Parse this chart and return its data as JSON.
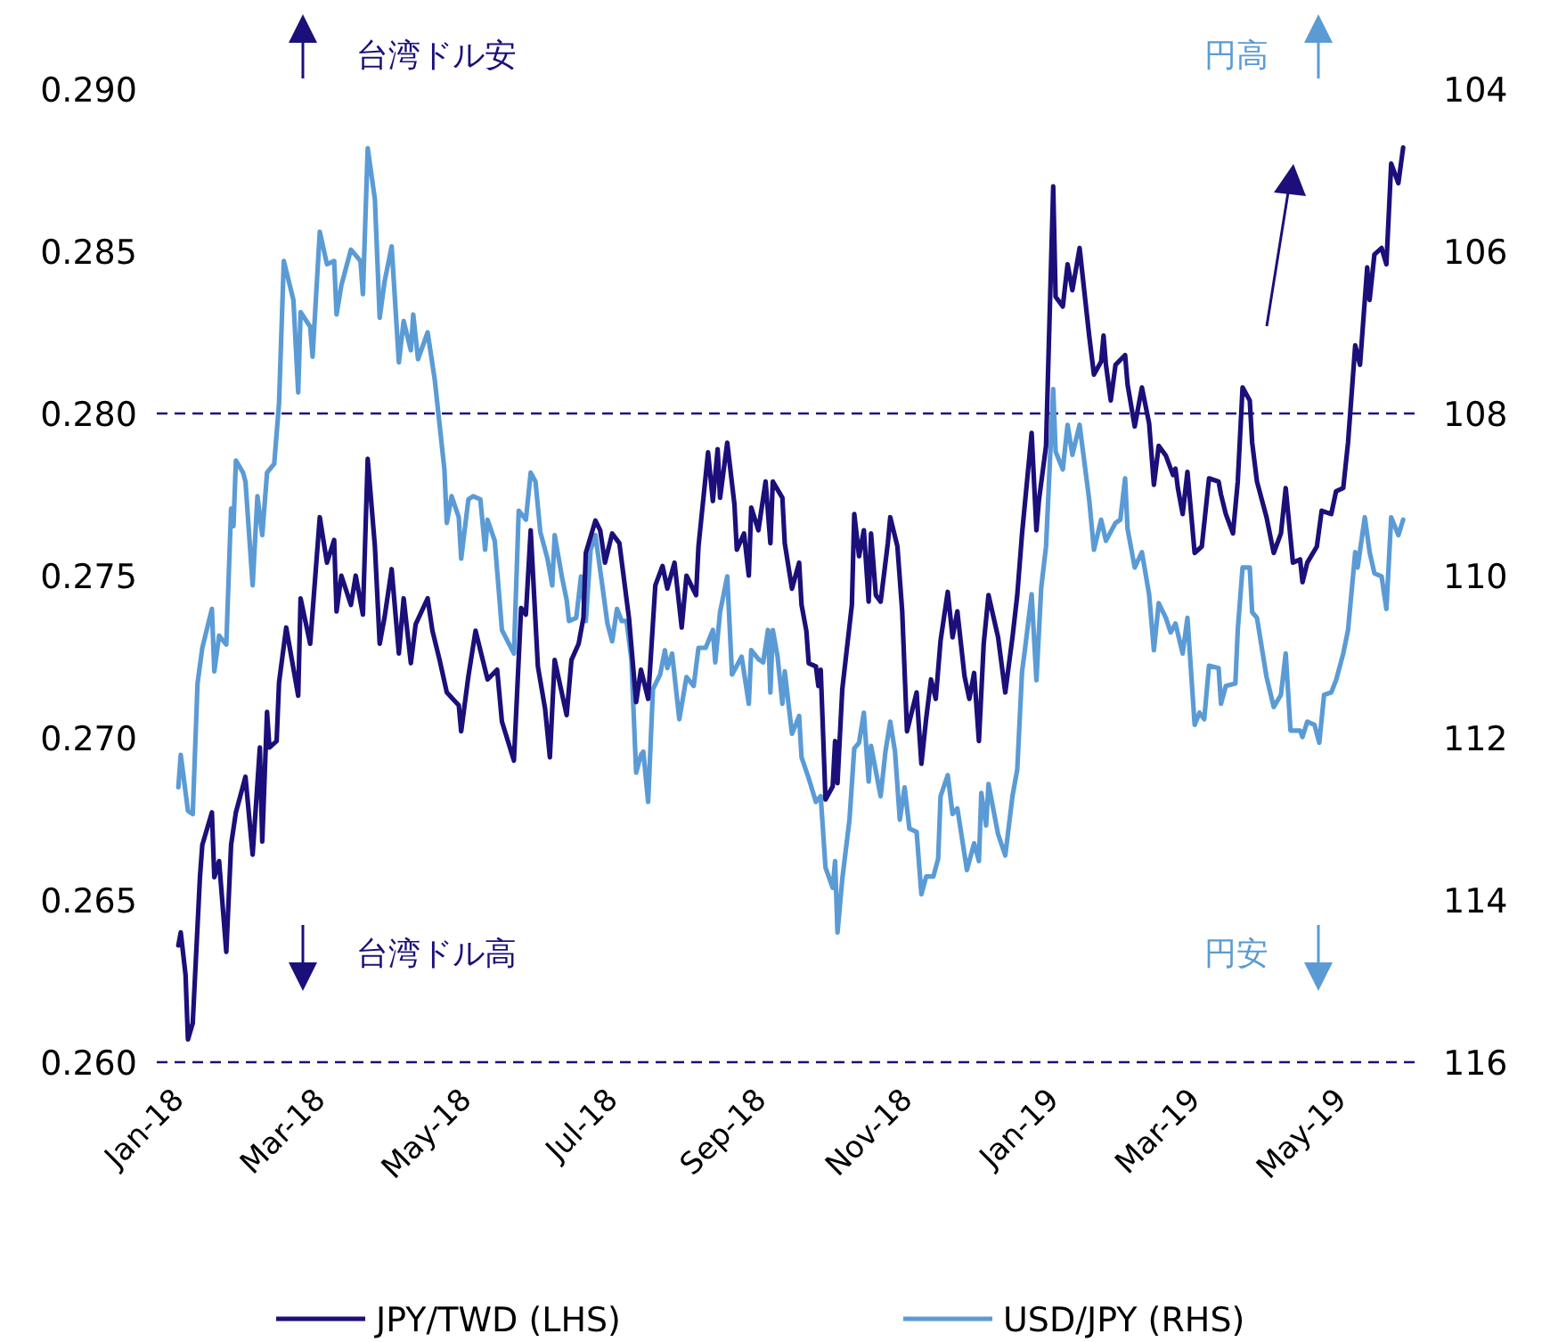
{
  "chart_data": {
    "type": "line",
    "xlim": [
      "2017-12-23",
      "2019-06-03"
    ],
    "xticks": [
      {
        "value": "2018-01-01",
        "label": "Jan-18"
      },
      {
        "value": "2018-03-01",
        "label": "Mar-18"
      },
      {
        "value": "2018-05-01",
        "label": "May-18"
      },
      {
        "value": "2018-07-01",
        "label": "Jul-18"
      },
      {
        "value": "2018-09-01",
        "label": "Sep-18"
      },
      {
        "value": "2018-11-01",
        "label": "Nov-18"
      },
      {
        "value": "2019-01-01",
        "label": "Jan-19"
      },
      {
        "value": "2019-03-01",
        "label": "Mar-19"
      },
      {
        "value": "2019-05-01",
        "label": "May-19"
      }
    ],
    "ylim": [
      0.26,
      0.29
    ],
    "yticks": [
      {
        "value": 0.26,
        "label": "0.260"
      },
      {
        "value": 0.265,
        "label": "0.265"
      },
      {
        "value": 0.27,
        "label": "0.270"
      },
      {
        "value": 0.275,
        "label": "0.275"
      },
      {
        "value": 0.28,
        "label": "0.280"
      },
      {
        "value": 0.285,
        "label": "0.285"
      },
      {
        "value": 0.29,
        "label": "0.290"
      }
    ],
    "y2lim": [
      116,
      104
    ],
    "y2ticks": [
      104,
      106,
      108,
      110,
      112,
      114,
      116
    ],
    "ref_lines": [
      {
        "axis": "y",
        "value": 0.28,
        "color": "#1b0f7a",
        "line_style": "dashed"
      },
      {
        "axis": "y",
        "value": 0.26,
        "color": "#1b0f7a",
        "line_style": "dashed"
      }
    ],
    "annotations": [
      "台湾ドル安",
      "円高",
      "台湾ドル高",
      "円安"
    ],
    "legend": "bottom",
    "series": [
      {
        "name": "JPY/TWD (LHS)",
        "color": "#1b0f7a",
        "x": [
          "2018-01-01",
          "2018-01-02",
          "2018-01-04",
          "2018-01-05",
          "2018-01-07",
          "2018-01-10",
          "2018-01-11",
          "2018-01-15",
          "2018-01-16",
          "2018-01-18",
          "2018-01-21",
          "2018-01-23",
          "2018-01-25",
          "2018-01-29",
          "2018-02-01",
          "2018-02-04",
          "2018-02-05",
          "2018-02-07",
          "2018-02-08",
          "2018-02-11",
          "2018-02-12",
          "2018-02-15",
          "2018-02-20",
          "2018-02-21",
          "2018-02-25",
          "2018-03-01",
          "2018-03-04",
          "2018-03-07",
          "2018-03-08",
          "2018-03-10",
          "2018-03-14",
          "2018-03-16",
          "2018-03-19",
          "2018-03-21",
          "2018-03-24",
          "2018-03-26",
          "2018-03-28",
          "2018-03-31",
          "2018-04-03",
          "2018-04-05",
          "2018-04-08",
          "2018-04-10",
          "2018-04-15",
          "2018-04-17",
          "2018-04-20",
          "2018-04-23",
          "2018-04-28",
          "2018-04-29",
          "2018-05-02",
          "2018-05-05",
          "2018-05-10",
          "2018-05-14",
          "2018-05-16",
          "2018-05-21",
          "2018-05-24",
          "2018-05-26",
          "2018-05-28",
          "2018-05-31",
          "2018-06-03",
          "2018-06-05",
          "2018-06-07",
          "2018-06-12",
          "2018-06-14",
          "2018-06-17",
          "2018-06-19",
          "2018-06-20",
          "2018-06-24",
          "2018-06-26",
          "2018-06-28",
          "2018-07-01",
          "2018-07-04",
          "2018-07-08",
          "2018-07-11",
          "2018-07-13",
          "2018-07-16",
          "2018-07-19",
          "2018-07-22",
          "2018-07-24",
          "2018-07-27",
          "2018-07-30",
          "2018-08-01",
          "2018-08-05",
          "2018-08-06",
          "2018-08-10",
          "2018-08-12",
          "2018-08-14",
          "2018-08-15",
          "2018-08-18",
          "2018-08-21",
          "2018-08-22",
          "2018-08-25",
          "2018-08-27",
          "2018-08-28",
          "2018-08-31",
          "2018-09-03",
          "2018-09-05",
          "2018-09-06",
          "2018-09-10",
          "2018-09-11",
          "2018-09-14",
          "2018-09-17",
          "2018-09-18",
          "2018-09-20",
          "2018-09-21",
          "2018-09-24",
          "2018-09-25",
          "2018-09-26",
          "2018-09-28",
          "2018-10-01",
          "2018-10-02",
          "2018-10-03",
          "2018-10-05",
          "2018-10-09",
          "2018-10-10",
          "2018-10-12",
          "2018-10-14",
          "2018-10-16",
          "2018-10-17",
          "2018-10-19",
          "2018-10-21",
          "2018-10-24",
          "2018-10-25",
          "2018-10-28",
          "2018-10-30",
          "2018-11-01",
          "2018-11-05",
          "2018-11-07",
          "2018-11-09",
          "2018-11-11",
          "2018-11-13",
          "2018-11-15",
          "2018-11-18",
          "2018-11-20",
          "2018-11-22",
          "2018-11-25",
          "2018-11-27",
          "2018-11-29",
          "2018-12-01",
          "2018-12-03",
          "2018-12-05",
          "2018-12-09",
          "2018-12-12",
          "2018-12-15",
          "2018-12-17",
          "2018-12-19",
          "2018-12-23",
          "2018-12-25",
          "2018-12-26",
          "2018-12-29",
          "2019-01-01",
          "2019-01-02",
          "2019-01-05",
          "2019-01-07",
          "2019-01-09",
          "2019-01-12",
          "2019-01-16",
          "2019-01-18",
          "2019-01-21",
          "2019-01-22",
          "2019-01-23",
          "2019-01-25",
          "2019-01-27",
          "2019-01-31",
          "2019-02-01",
          "2019-02-04",
          "2019-02-07",
          "2019-02-10",
          "2019-02-12",
          "2019-02-14",
          "2019-02-17",
          "2019-02-20",
          "2019-02-21",
          "2019-02-22",
          "2019-02-24",
          "2019-02-26",
          "2019-03-01",
          "2019-03-04",
          "2019-03-07",
          "2019-03-11",
          "2019-03-12",
          "2019-03-14",
          "2019-03-17",
          "2019-03-19",
          "2019-03-21",
          "2019-03-24",
          "2019-03-25",
          "2019-03-27",
          "2019-03-31",
          "2019-04-03",
          "2019-04-06",
          "2019-04-08",
          "2019-04-11",
          "2019-04-14",
          "2019-04-15",
          "2019-04-17",
          "2019-04-21",
          "2019-04-23",
          "2019-04-27",
          "2019-04-29",
          "2019-05-02",
          "2019-05-04",
          "2019-05-07",
          "2019-05-09",
          "2019-05-12",
          "2019-05-13",
          "2019-05-15",
          "2019-05-18",
          "2019-05-20",
          "2019-05-22",
          "2019-05-23",
          "2019-05-25",
          "2019-05-27"
        ],
        "values": [
          0.2636,
          0.264,
          0.2627,
          0.2607,
          0.2612,
          0.2657,
          0.2667,
          0.2677,
          0.2657,
          0.2662,
          0.2634,
          0.2667,
          0.2677,
          0.2688,
          0.2664,
          0.2697,
          0.2668,
          0.2708,
          0.2697,
          0.2699,
          0.2717,
          0.2734,
          0.2713,
          0.2743,
          0.2729,
          0.2768,
          0.2754,
          0.2761,
          0.2739,
          0.275,
          0.2741,
          0.275,
          0.2738,
          0.2786,
          0.2759,
          0.2729,
          0.2737,
          0.2752,
          0.2726,
          0.2743,
          0.2723,
          0.2735,
          0.2743,
          0.2733,
          0.2724,
          0.2714,
          0.271,
          0.2702,
          0.2719,
          0.2733,
          0.2718,
          0.2721,
          0.2705,
          0.2693,
          0.274,
          0.2738,
          0.2764,
          0.2722,
          0.2709,
          0.2694,
          0.2724,
          0.2707,
          0.2724,
          0.2729,
          0.2737,
          0.2757,
          0.2767,
          0.2764,
          0.2754,
          0.2763,
          0.276,
          0.2737,
          0.2711,
          0.2721,
          0.2712,
          0.2747,
          0.2753,
          0.2746,
          0.2754,
          0.2734,
          0.275,
          0.2744,
          0.2759,
          0.2788,
          0.2773,
          0.2789,
          0.2774,
          0.2791,
          0.2772,
          0.2758,
          0.2763,
          0.275,
          0.2771,
          0.2764,
          0.2779,
          0.276,
          0.2779,
          0.2774,
          0.276,
          0.2746,
          0.2754,
          0.2741,
          0.2733,
          0.2723,
          0.2722,
          0.2716,
          0.2721,
          0.2681,
          0.2685,
          0.2699,
          0.2686,
          0.2715,
          0.2741,
          0.2769,
          0.2756,
          0.2764,
          0.2742,
          0.2763,
          0.2744,
          0.2742,
          0.276,
          0.2768,
          0.2759,
          0.2739,
          0.2702,
          0.2714,
          0.2692,
          0.2706,
          0.2718,
          0.2712,
          0.273,
          0.2745,
          0.2731,
          0.2739,
          0.2719,
          0.2712,
          0.272,
          0.2699,
          0.2729,
          0.2744,
          0.2731,
          0.2714,
          0.2731,
          0.2744,
          0.2763,
          0.2794,
          0.2764,
          0.2773,
          0.279,
          0.287,
          0.2836,
          0.2833,
          0.2846,
          0.2838,
          0.2851,
          0.2824,
          0.2812,
          0.2816,
          0.2824,
          0.2815,
          0.2804,
          0.2815,
          0.2818,
          0.2809,
          0.2796,
          0.2808,
          0.2797,
          0.2778,
          0.279,
          0.2787,
          0.2781,
          0.2783,
          0.2777,
          0.2769,
          0.2782,
          0.2757,
          0.2759,
          0.278,
          0.2779,
          0.2775,
          0.2769,
          0.2763,
          0.2779,
          0.2808,
          0.2804,
          0.2791,
          0.2779,
          0.2768,
          0.2757,
          0.2763,
          0.2777,
          0.2754,
          0.2755,
          0.2748,
          0.2754,
          0.2759,
          0.277,
          0.2769,
          0.2776,
          0.2777,
          0.2791,
          0.2821,
          0.2815,
          0.2845,
          0.2835,
          0.2849,
          0.2851,
          0.2846,
          0.2877,
          0.2875,
          0.2871,
          0.2882
        ]
      },
      {
        "name": "USD/JPY (RHS)",
        "color": "#5b9bd5",
        "axis": "y2",
        "x": [
          "2018-01-01",
          "2018-01-02",
          "2018-01-05",
          "2018-01-07",
          "2018-01-09",
          "2018-01-11",
          "2018-01-15",
          "2018-01-16",
          "2018-01-18",
          "2018-01-21",
          "2018-01-23",
          "2018-01-24",
          "2018-01-25",
          "2018-01-28",
          "2018-01-29",
          "2018-02-01",
          "2018-02-03",
          "2018-02-05",
          "2018-02-07",
          "2018-02-10",
          "2018-02-12",
          "2018-02-14",
          "2018-02-18",
          "2018-02-20",
          "2018-02-21",
          "2018-02-25",
          "2018-02-26",
          "2018-03-01",
          "2018-03-04",
          "2018-03-07",
          "2018-03-08",
          "2018-03-10",
          "2018-03-14",
          "2018-03-18",
          "2018-03-19",
          "2018-03-21",
          "2018-03-24",
          "2018-03-26",
          "2018-03-28",
          "2018-03-31",
          "2018-04-03",
          "2018-04-05",
          "2018-04-08",
          "2018-04-09",
          "2018-04-11",
          "2018-04-15",
          "2018-04-18",
          "2018-04-22",
          "2018-04-23",
          "2018-04-25",
          "2018-04-28",
          "2018-04-29",
          "2018-05-02",
          "2018-05-04",
          "2018-05-07",
          "2018-05-09",
          "2018-05-10",
          "2018-05-13",
          "2018-05-15",
          "2018-05-16",
          "2018-05-21",
          "2018-05-23",
          "2018-05-26",
          "2018-05-28",
          "2018-05-30",
          "2018-06-01",
          "2018-06-04",
          "2018-06-06",
          "2018-06-07",
          "2018-06-10",
          "2018-06-12",
          "2018-06-13",
          "2018-06-16",
          "2018-06-18",
          "2018-06-20",
          "2018-06-22",
          "2018-06-24",
          "2018-06-27",
          "2018-06-29",
          "2018-07-01",
          "2018-07-03",
          "2018-07-05",
          "2018-07-07",
          "2018-07-09",
          "2018-07-11",
          "2018-07-13",
          "2018-07-14",
          "2018-07-16",
          "2018-07-18",
          "2018-07-21",
          "2018-07-23",
          "2018-07-24",
          "2018-07-26",
          "2018-07-29",
          "2018-08-01",
          "2018-08-04",
          "2018-08-06",
          "2018-08-09",
          "2018-08-12",
          "2018-08-13",
          "2018-08-15",
          "2018-08-18",
          "2018-08-20",
          "2018-08-24",
          "2018-08-27",
          "2018-08-28",
          "2018-08-31",
          "2018-09-02",
          "2018-09-04",
          "2018-09-05",
          "2018-09-06",
          "2018-09-08",
          "2018-09-10",
          "2018-09-11",
          "2018-09-14",
          "2018-09-17",
          "2018-09-18",
          "2018-09-21",
          "2018-09-24",
          "2018-09-26",
          "2018-09-28",
          "2018-10-01",
          "2018-10-02",
          "2018-10-03",
          "2018-10-05",
          "2018-10-08",
          "2018-10-10",
          "2018-10-12",
          "2018-10-14",
          "2018-10-16",
          "2018-10-17",
          "2018-10-21",
          "2018-10-23",
          "2018-10-25",
          "2018-10-27",
          "2018-10-29",
          "2018-10-31",
          "2018-11-02",
          "2018-11-05",
          "2018-11-07",
          "2018-11-09",
          "2018-11-12",
          "2018-11-14",
          "2018-11-15",
          "2018-11-18",
          "2018-11-20",
          "2018-11-22",
          "2018-11-26",
          "2018-11-29",
          "2018-12-01",
          "2018-12-02",
          "2018-12-04",
          "2018-12-05",
          "2018-12-09",
          "2018-12-12",
          "2018-12-15",
          "2018-12-17",
          "2018-12-19",
          "2018-12-20",
          "2018-12-23",
          "2018-12-25",
          "2018-12-27",
          "2018-12-29",
          "2019-01-01",
          "2019-01-02",
          "2019-01-05",
          "2019-01-07",
          "2019-01-09",
          "2019-01-12",
          "2019-01-16",
          "2019-01-18",
          "2019-01-21",
          "2019-01-23",
          "2019-01-27",
          "2019-01-29",
          "2019-01-31",
          "2019-02-01",
          "2019-02-04",
          "2019-02-07",
          "2019-02-10",
          "2019-02-12",
          "2019-02-14",
          "2019-02-17",
          "2019-02-19",
          "2019-02-21",
          "2019-02-24",
          "2019-02-26",
          "2019-03-01",
          "2019-03-03",
          "2019-03-05",
          "2019-03-07",
          "2019-03-11",
          "2019-03-12",
          "2019-03-14",
          "2019-03-18",
          "2019-03-19",
          "2019-03-21",
          "2019-03-24",
          "2019-03-25",
          "2019-03-27",
          "2019-03-31",
          "2019-04-03",
          "2019-04-06",
          "2019-04-08",
          "2019-04-10",
          "2019-04-14",
          "2019-04-15",
          "2019-04-17",
          "2019-04-20",
          "2019-04-22",
          "2019-04-24",
          "2019-04-27",
          "2019-04-29",
          "2019-05-02",
          "2019-05-04",
          "2019-05-07",
          "2019-05-08",
          "2019-05-11",
          "2019-05-13",
          "2019-05-15",
          "2019-05-18",
          "2019-05-20",
          "2019-05-22",
          "2019-05-25",
          "2019-05-27"
        ],
        "values": [
          112.61,
          112.21,
          112.9,
          112.94,
          111.33,
          110.89,
          110.41,
          111.18,
          110.74,
          110.85,
          109.17,
          109.39,
          108.58,
          108.73,
          108.84,
          110.12,
          109.02,
          109.5,
          108.73,
          108.62,
          107.88,
          106.12,
          106.6,
          107.74,
          106.75,
          106.93,
          107.3,
          105.76,
          106.16,
          106.12,
          106.78,
          106.42,
          105.98,
          106.12,
          106.53,
          104.73,
          105.36,
          106.82,
          106.38,
          105.94,
          107.37,
          106.86,
          107.22,
          106.78,
          107.33,
          107.0,
          107.59,
          108.69,
          109.35,
          109.02,
          109.28,
          109.79,
          109.06,
          109.02,
          109.06,
          109.68,
          109.31,
          109.57,
          110.3,
          110.67,
          110.96,
          109.2,
          109.31,
          108.73,
          108.84,
          109.46,
          109.79,
          110.12,
          109.5,
          110.01,
          110.3,
          110.56,
          110.52,
          110.01,
          110.56,
          109.68,
          109.5,
          110.15,
          110.59,
          110.81,
          110.41,
          110.56,
          110.56,
          111.03,
          112.43,
          112.21,
          112.17,
          112.79,
          111.4,
          111.22,
          110.92,
          111.14,
          110.96,
          111.77,
          111.25,
          111.36,
          110.89,
          110.89,
          110.67,
          111.07,
          110.45,
          110.01,
          111.22,
          111.0,
          111.58,
          110.92,
          111.03,
          111.07,
          110.67,
          111.44,
          110.67,
          111.0,
          111.58,
          111.18,
          111.95,
          111.73,
          112.24,
          112.5,
          112.79,
          112.72,
          113.6,
          113.85,
          113.52,
          114.4,
          113.74,
          113.01,
          112.13,
          112.06,
          111.69,
          112.54,
          112.1,
          112.72,
          112.17,
          111.8,
          112.17,
          113.01,
          112.61,
          113.12,
          113.16,
          113.93,
          113.71,
          113.71,
          113.49,
          112.72,
          112.46,
          112.94,
          112.87,
          113.63,
          113.3,
          113.52,
          112.68,
          113.08,
          112.57,
          113.19,
          113.45,
          112.72,
          112.39,
          111.18,
          110.96,
          110.23,
          111.29,
          110.15,
          109.64,
          107.7,
          108.47,
          108.69,
          108.14,
          108.51,
          108.14,
          109.06,
          109.68,
          109.31,
          109.57,
          109.35,
          109.31,
          108.8,
          109.42,
          109.9,
          109.71,
          110.23,
          110.92,
          110.34,
          110.52,
          110.7,
          110.59,
          110.96,
          110.52,
          111.84,
          111.69,
          111.77,
          111.11,
          111.14,
          111.58,
          111.36,
          111.33,
          110.67,
          109.9,
          109.9,
          110.45,
          110.52,
          111.25,
          111.62,
          111.47,
          110.96,
          111.91,
          111.91,
          111.99,
          111.8,
          111.84,
          112.06,
          111.47,
          111.44,
          111.29,
          110.96,
          110.67,
          109.71,
          109.9,
          109.28,
          109.71,
          109.97,
          110.01,
          110.41,
          109.28,
          109.5,
          109.31
        ]
      }
    ]
  }
}
